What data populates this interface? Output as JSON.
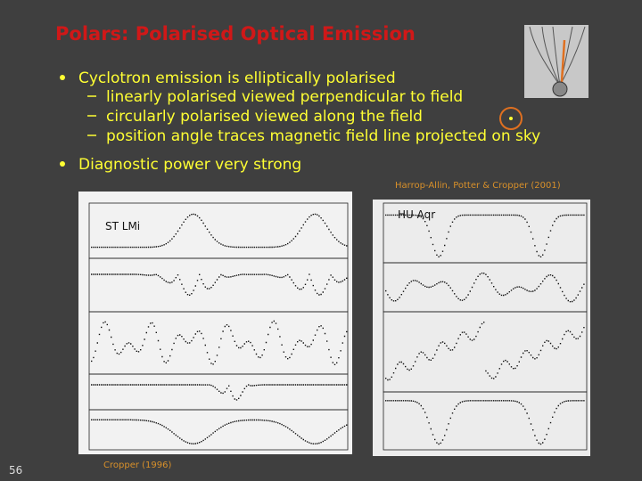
{
  "slide": {
    "title": "Polars: Polarised Optical Emission",
    "bullets": [
      {
        "text": "Cyclotron emission is elliptically polarised",
        "sub": [
          "linearly polarised viewed perpendicular to field",
          "circularly polarised viewed along the field",
          "position angle traces magnetic field line projected on sky"
        ]
      },
      {
        "text": "Diagnostic power very strong"
      }
    ],
    "figures": [
      {
        "label": "ST LMi",
        "caption": "Cropper (1996)"
      },
      {
        "label": "HU Aqr",
        "caption": "Harrop-Allin, Potter & Cropper (2001)"
      }
    ],
    "page_number": "56"
  }
}
